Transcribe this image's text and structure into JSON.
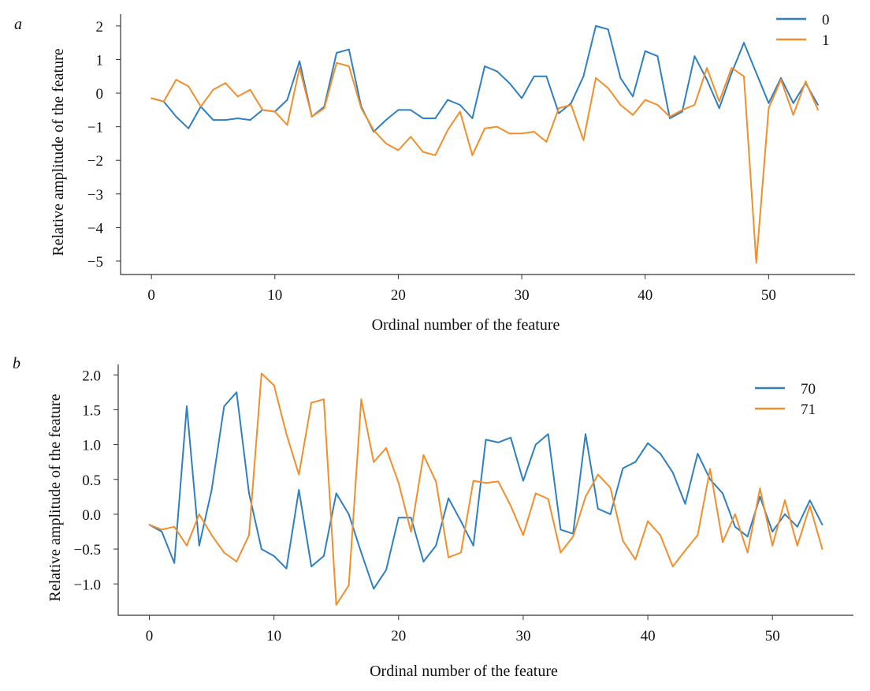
{
  "chart_data": [
    {
      "panel": "a",
      "type": "line",
      "xlabel": "Ordinal number of the feature",
      "ylabel": "Relative amplitude of the feature",
      "xlim": [
        -2.5,
        57
      ],
      "ylim": [
        -5.4,
        2.35
      ],
      "xticks": [
        0,
        10,
        20,
        30,
        40,
        50
      ],
      "yticks": [
        2,
        1,
        0,
        -1,
        -2,
        -3,
        -4,
        -5
      ],
      "ytick_labels": [
        "2",
        "1",
        "0",
        "−1",
        "−2",
        "−3",
        "−4",
        "−5"
      ],
      "grid": false,
      "legend_position": "top-right",
      "series": [
        {
          "name": "0",
          "color": "#2f7fc1",
          "x": [
            0,
            1,
            2,
            3,
            4,
            5,
            6,
            7,
            8,
            9,
            10,
            11,
            12,
            13,
            14,
            15,
            16,
            17,
            18,
            19,
            20,
            21,
            22,
            23,
            24,
            25,
            26,
            27,
            28,
            29,
            30,
            31,
            32,
            33,
            34,
            35,
            36,
            37,
            38,
            39,
            40,
            41,
            42,
            43,
            44,
            45,
            46,
            47,
            48,
            49,
            50,
            51,
            52,
            53,
            54
          ],
          "values": [
            -0.15,
            -0.25,
            -0.7,
            -1.05,
            -0.4,
            -0.8,
            -0.8,
            -0.75,
            -0.8,
            -0.5,
            -0.55,
            -0.2,
            0.95,
            -0.7,
            -0.4,
            1.2,
            1.3,
            -0.4,
            -1.15,
            -0.8,
            -0.5,
            -0.5,
            -0.75,
            -0.75,
            -0.2,
            -0.35,
            -0.75,
            0.8,
            0.65,
            0.3,
            -0.15,
            0.5,
            0.5,
            -0.6,
            -0.3,
            0.5,
            2.0,
            1.9,
            0.45,
            -0.1,
            1.25,
            1.1,
            -0.75,
            -0.55,
            1.1,
            0.4,
            -0.45,
            0.6,
            1.5,
            0.6,
            -0.3,
            0.45,
            -0.3,
            0.3,
            -0.35
          ]
        },
        {
          "name": "1",
          "color": "#f28e2b",
          "x": [
            0,
            1,
            2,
            3,
            4,
            5,
            6,
            7,
            8,
            9,
            10,
            11,
            12,
            13,
            14,
            15,
            16,
            17,
            18,
            19,
            20,
            21,
            22,
            23,
            24,
            25,
            26,
            27,
            28,
            29,
            30,
            31,
            32,
            33,
            34,
            35,
            36,
            37,
            38,
            39,
            40,
            41,
            42,
            43,
            44,
            45,
            46,
            47,
            48,
            49,
            50,
            51,
            52,
            53,
            54
          ],
          "values": [
            -0.15,
            -0.25,
            0.4,
            0.2,
            -0.4,
            0.1,
            0.3,
            -0.1,
            0.1,
            -0.5,
            -0.55,
            -0.95,
            0.75,
            -0.7,
            -0.45,
            0.9,
            0.8,
            -0.45,
            -1.1,
            -1.5,
            -1.7,
            -1.3,
            -1.75,
            -1.85,
            -1.1,
            -0.55,
            -1.85,
            -1.05,
            -1.0,
            -1.2,
            -1.2,
            -1.15,
            -1.45,
            -0.45,
            -0.35,
            -1.4,
            0.45,
            0.15,
            -0.35,
            -0.65,
            -0.2,
            -0.35,
            -0.7,
            -0.5,
            -0.35,
            0.75,
            -0.25,
            0.75,
            0.5,
            -5.05,
            -0.45,
            0.4,
            -0.65,
            0.35,
            -0.5
          ]
        }
      ]
    },
    {
      "panel": "b",
      "type": "line",
      "xlabel": "Ordinal number of the feature",
      "ylabel": "Relative amplitude of  the feature",
      "xlim": [
        -2.5,
        56.5
      ],
      "ylim": [
        -1.45,
        2.15
      ],
      "xticks": [
        0,
        10,
        20,
        30,
        40,
        50
      ],
      "yticks": [
        2.0,
        1.5,
        1.0,
        0.5,
        0.0,
        -0.5,
        -1.0
      ],
      "ytick_labels": [
        "2.0",
        "1.5",
        "1.0",
        "0.5",
        "0.0",
        "−0.5",
        "−1.0"
      ],
      "grid": false,
      "legend_position": "top-right",
      "series": [
        {
          "name": "70",
          "color": "#2f7fc1",
          "x": [
            0,
            1,
            2,
            3,
            4,
            5,
            6,
            7,
            8,
            9,
            10,
            11,
            12,
            13,
            14,
            15,
            16,
            17,
            18,
            19,
            20,
            21,
            22,
            23,
            24,
            25,
            26,
            27,
            28,
            29,
            30,
            31,
            32,
            33,
            34,
            35,
            36,
            37,
            38,
            39,
            40,
            41,
            42,
            43,
            44,
            45,
            46,
            47,
            48,
            49,
            50,
            51,
            52,
            53,
            54
          ],
          "values": [
            -0.15,
            -0.25,
            -0.7,
            1.55,
            -0.45,
            0.35,
            1.55,
            1.75,
            0.3,
            -0.5,
            -0.6,
            -0.78,
            0.35,
            -0.75,
            -0.6,
            0.3,
            0.0,
            -0.55,
            -1.07,
            -0.8,
            -0.05,
            -0.05,
            -0.68,
            -0.45,
            0.23,
            -0.1,
            -0.45,
            1.07,
            1.03,
            1.1,
            0.48,
            1.0,
            1.15,
            -0.22,
            -0.28,
            1.15,
            0.08,
            0.0,
            0.66,
            0.75,
            1.02,
            0.87,
            0.6,
            0.15,
            0.87,
            0.5,
            0.3,
            -0.18,
            -0.32,
            0.25,
            -0.25,
            0.0,
            -0.18,
            0.2,
            -0.15
          ]
        },
        {
          "name": "71",
          "color": "#f28e2b",
          "x": [
            0,
            1,
            2,
            3,
            4,
            5,
            6,
            7,
            8,
            9,
            10,
            11,
            12,
            13,
            14,
            15,
            16,
            17,
            18,
            19,
            20,
            21,
            22,
            23,
            24,
            25,
            26,
            27,
            28,
            29,
            30,
            31,
            32,
            33,
            34,
            35,
            36,
            37,
            38,
            39,
            40,
            41,
            42,
            43,
            44,
            45,
            46,
            47,
            48,
            49,
            50,
            51,
            52,
            53,
            54
          ],
          "values": [
            -0.15,
            -0.22,
            -0.18,
            -0.45,
            0.0,
            -0.3,
            -0.55,
            -0.68,
            -0.3,
            2.02,
            1.85,
            1.15,
            0.57,
            1.6,
            1.65,
            -1.3,
            -1.02,
            1.65,
            0.75,
            0.95,
            0.45,
            -0.25,
            0.85,
            0.47,
            -0.62,
            -0.55,
            0.48,
            0.45,
            0.47,
            0.12,
            -0.3,
            0.3,
            0.22,
            -0.55,
            -0.32,
            0.25,
            0.57,
            0.38,
            -0.38,
            -0.65,
            -0.1,
            -0.3,
            -0.75,
            -0.52,
            -0.3,
            0.65,
            -0.4,
            0.0,
            -0.55,
            0.37,
            -0.45,
            0.2,
            -0.45,
            0.12,
            -0.5
          ]
        }
      ]
    }
  ]
}
